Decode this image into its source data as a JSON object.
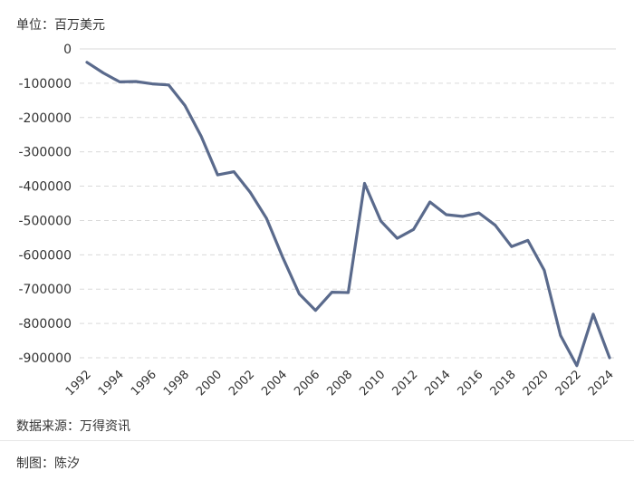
{
  "unit_label": "单位：百万美元",
  "source_label": "数据来源：万得资讯",
  "author_label": "制图：陈汐",
  "chart_data": {
    "type": "line",
    "title": "",
    "xlabel": "",
    "ylabel": "",
    "ylim": [
      -900000,
      0
    ],
    "yticks": [
      0,
      -100000,
      -200000,
      -300000,
      -400000,
      -500000,
      -600000,
      -700000,
      -800000,
      -900000
    ],
    "ytick_labels": [
      "0",
      "-100000",
      "-200000",
      "-300000",
      "-400000",
      "-500000",
      "-600000",
      "-700000",
      "-800000",
      "-900000"
    ],
    "xticks": [
      "1992",
      "1994",
      "1996",
      "1998",
      "2000",
      "2002",
      "2004",
      "2006",
      "2008",
      "2010",
      "2012",
      "2014",
      "2016",
      "2018",
      "2020",
      "2022",
      "2024"
    ],
    "grid": "horizontal-dashed",
    "line_color": "#5a6a8c",
    "x": [
      1992,
      1993,
      1994,
      1995,
      1996,
      1997,
      1998,
      1999,
      2000,
      2001,
      2002,
      2003,
      2004,
      2005,
      2006,
      2007,
      2008,
      2009,
      2010,
      2011,
      2012,
      2013,
      2014,
      2015,
      2016,
      2017,
      2018,
      2019,
      2020,
      2021,
      2022,
      2023,
      2024
    ],
    "values": [
      -39000,
      -70000,
      -96000,
      -95000,
      -102000,
      -105000,
      -165000,
      -255000,
      -367000,
      -358000,
      -418000,
      -494000,
      -609000,
      -714000,
      -762000,
      -709000,
      -710000,
      -392000,
      -502000,
      -552000,
      -526000,
      -446000,
      -483000,
      -488000,
      -478000,
      -514000,
      -576000,
      -558000,
      -645000,
      -835000,
      -923000,
      -773000,
      -900000
    ]
  }
}
